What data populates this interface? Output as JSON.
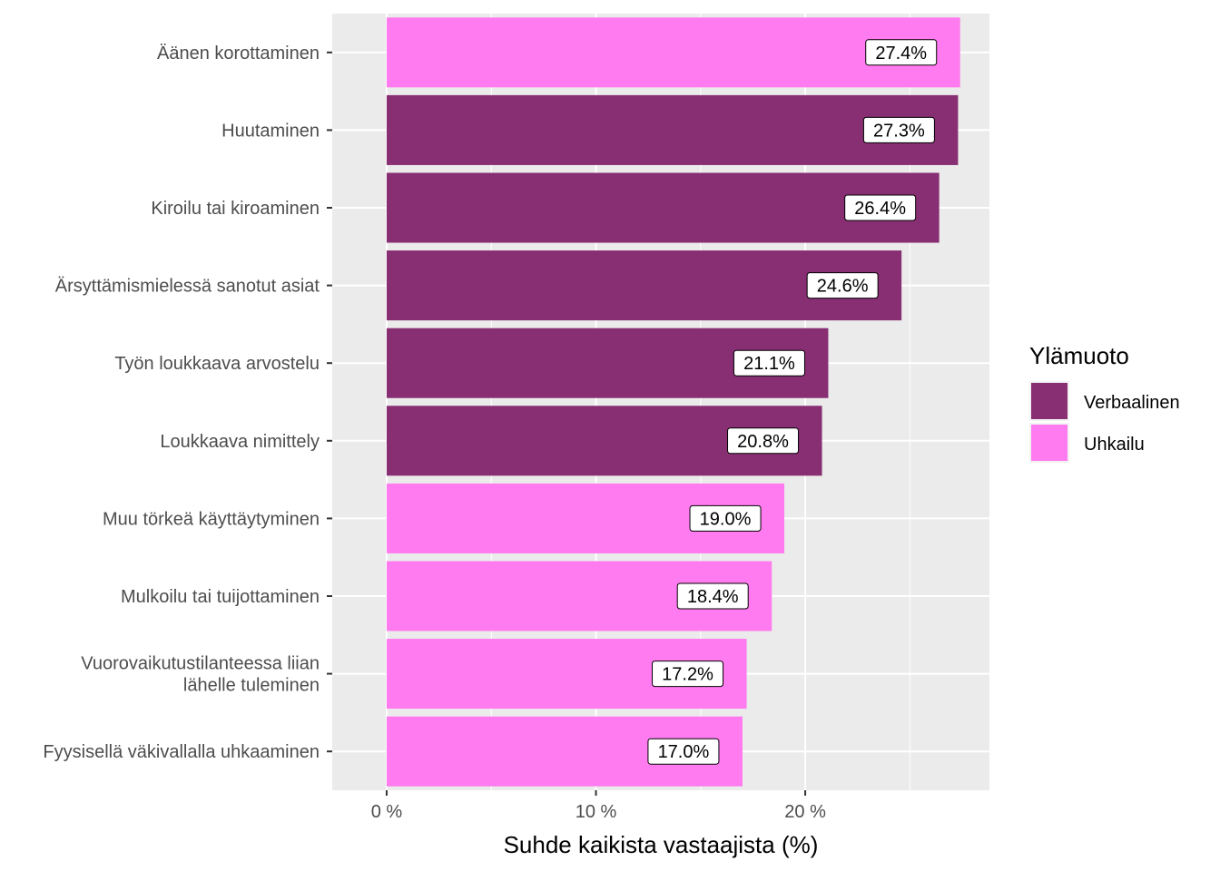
{
  "chart_data": {
    "type": "bar",
    "orientation": "horizontal",
    "xlabel": "Suhde kaikista vastaajista (%)",
    "xlim": [
      -2.6,
      28.8
    ],
    "x_ticks": [
      {
        "value": 0,
        "label": "0 %"
      },
      {
        "value": 10,
        "label": "10 %"
      },
      {
        "value": 20,
        "label": "20 %"
      }
    ],
    "legend": {
      "title": "Ylämuoto",
      "placement": "right",
      "entries": [
        {
          "key": "Verbaalinen",
          "label": "Verbaalinen",
          "color": "#882e72"
        },
        {
          "key": "Uhkailu",
          "label": "Uhkailu",
          "color": "#ff7bef"
        }
      ]
    },
    "grid": true,
    "bars": [
      {
        "category": [
          "Äänen korottaminen"
        ],
        "value": 27.4,
        "label": "27.4%",
        "group": "Uhkailu"
      },
      {
        "category": [
          "Huutaminen"
        ],
        "value": 27.3,
        "label": "27.3%",
        "group": "Verbaalinen"
      },
      {
        "category": [
          "Kiroilu tai kiroaminen"
        ],
        "value": 26.4,
        "label": "26.4%",
        "group": "Verbaalinen"
      },
      {
        "category": [
          "Ärsyttämismielessä sanotut asiat"
        ],
        "value": 24.6,
        "label": "24.6%",
        "group": "Verbaalinen"
      },
      {
        "category": [
          "Työn loukkaava arvostelu"
        ],
        "value": 21.1,
        "label": "21.1%",
        "group": "Verbaalinen"
      },
      {
        "category": [
          "Loukkaava nimittely"
        ],
        "value": 20.8,
        "label": "20.8%",
        "group": "Verbaalinen"
      },
      {
        "category": [
          "Muu törkeä käyttäytyminen"
        ],
        "value": 19.0,
        "label": "19.0%",
        "group": "Uhkailu"
      },
      {
        "category": [
          "Mulkoilu tai tuijottaminen"
        ],
        "value": 18.4,
        "label": "18.4%",
        "group": "Uhkailu"
      },
      {
        "category": [
          "Vuorovaikutustilanteessa liian",
          "lähelle tuleminen"
        ],
        "value": 17.2,
        "label": "17.2%",
        "group": "Uhkailu"
      },
      {
        "category": [
          "Fyysisellä väkivallalla uhkaaminen"
        ],
        "value": 17.0,
        "label": "17.0%",
        "group": "Uhkailu"
      }
    ]
  }
}
